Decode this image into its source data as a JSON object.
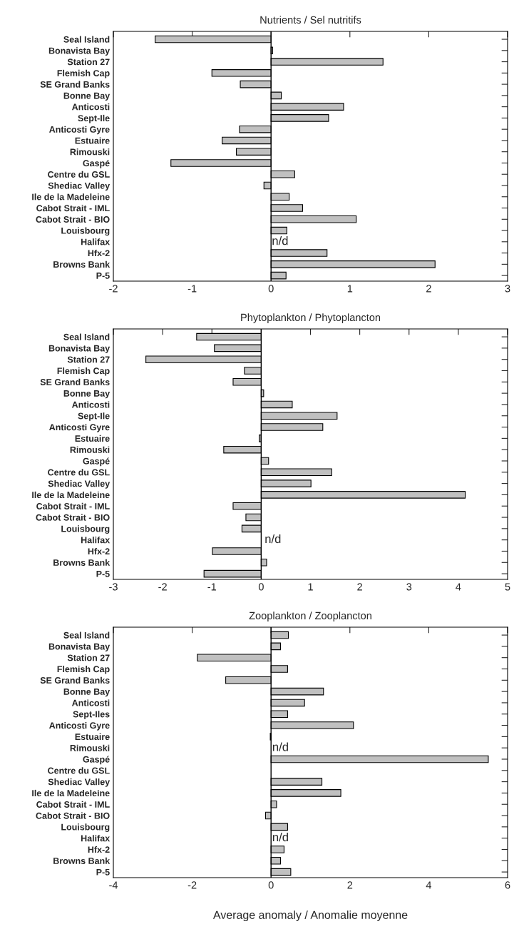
{
  "chart_data": [
    {
      "type": "bar",
      "orientation": "horizontal",
      "title": "Nutrients / Sel nutritifs",
      "categories": [
        "Seal Island",
        "Bonavista Bay",
        "Station 27",
        "Flemish Cap",
        "SE Grand Banks",
        "Bonne Bay",
        "Anticosti",
        "Sept-Ile",
        "Anticosti Gyre",
        "Estuaire",
        "Rimouski",
        "Gaspé",
        "Centre du GSL",
        "Shediac Valley",
        "Ile de la Madeleine",
        "Cabot Strait - IML",
        "Cabot Strait - BIO",
        "Louisbourg",
        "Halifax",
        "Hfx-2",
        "Browns Bank",
        "P-5"
      ],
      "values": [
        -1.47,
        0.02,
        1.42,
        -0.75,
        -0.39,
        0.13,
        0.92,
        0.73,
        -0.4,
        -0.62,
        -0.44,
        -1.27,
        0.3,
        -0.09,
        0.23,
        0.4,
        1.08,
        0.2,
        null,
        0.71,
        2.08,
        0.19
      ],
      "color": "#c0c0c0",
      "xlim": [
        -2,
        3
      ],
      "xticks": [
        -2,
        -1,
        0,
        1,
        2,
        3
      ],
      "grid": false,
      "ref_lines": [
        {
          "axis": "x",
          "value": 0,
          "color": "#000000"
        }
      ],
      "annotations": [
        {
          "text": "n/d",
          "x": 0.01,
          "y": "Halifax"
        }
      ]
    },
    {
      "type": "bar",
      "orientation": "horizontal",
      "title": "Phytoplankton / Phytoplancton",
      "categories": [
        "Seal Island",
        "Bonavista Bay",
        "Station 27",
        "Flemish Cap",
        "SE Grand Banks",
        "Bonne Bay",
        "Anticosti",
        "Sept-Ile",
        "Anticosti Gyre",
        "Estuaire",
        "Rimouski",
        "Gaspé",
        "Centre du GSL",
        "Shediac Valley",
        "Ile de la Madeleine",
        "Cabot Strait - IML",
        "Cabot Strait - BIO",
        "Louisbourg",
        "Halifax",
        "Hfx-2",
        "Browns Bank",
        "P-5"
      ],
      "values": [
        -1.31,
        -0.95,
        -2.34,
        -0.34,
        -0.57,
        0.05,
        0.63,
        1.54,
        1.25,
        -0.04,
        -0.76,
        0.15,
        1.43,
        1.01,
        4.14,
        -0.57,
        -0.31,
        -0.39,
        null,
        -0.99,
        0.11,
        -1.16
      ],
      "color": "#c0c0c0",
      "xlim": [
        -3,
        5
      ],
      "xticks": [
        -3,
        -2,
        -1,
        0,
        1,
        2,
        3,
        4,
        5
      ],
      "grid": false,
      "ref_lines": [
        {
          "axis": "x",
          "value": 0,
          "color": "#000000"
        }
      ],
      "annotations": [
        {
          "text": "n/d",
          "x": 0.07,
          "y": "Halifax"
        }
      ]
    },
    {
      "type": "bar",
      "orientation": "horizontal",
      "title": "Zooplankton / Zooplancton",
      "xlabel": "Average anomaly / Anomalie moyenne",
      "categories": [
        "Seal Island",
        "Bonavista Bay",
        "Station 27",
        "Flemish Cap",
        "SE Grand Banks",
        "Bonne Bay",
        "Anticosti",
        "Sept-Iles",
        "Anticosti Gyre",
        "Estuaire",
        "Rimouski",
        "Gaspé",
        "Centre du GSL",
        "Shediac Valley",
        "Ile de la Madeleine",
        "Cabot Strait - IML",
        "Cabot Strait - BIO",
        "Louisbourg",
        "Halifax",
        "Hfx-2",
        "Browns Bank",
        "P-5"
      ],
      "values": [
        0.44,
        0.24,
        -1.87,
        0.42,
        -1.15,
        1.33,
        0.85,
        0.42,
        2.09,
        -0.02,
        null,
        5.51,
        null,
        1.29,
        1.77,
        0.14,
        -0.14,
        0.42,
        null,
        0.33,
        0.24,
        0.5
      ],
      "color": "#c0c0c0",
      "xlim": [
        -4,
        6
      ],
      "xticks": [
        -4,
        -2,
        0,
        2,
        4,
        6
      ],
      "grid": false,
      "ref_lines": [
        {
          "axis": "x",
          "value": 0,
          "color": "#000000"
        }
      ],
      "annotations": [
        {
          "text": "n/d",
          "x": 0.03,
          "y": "Rimouski"
        },
        {
          "text": "n/d",
          "x": 0.03,
          "y": "Halifax"
        }
      ]
    }
  ]
}
